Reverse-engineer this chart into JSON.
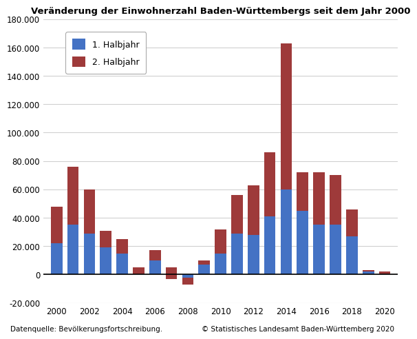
{
  "title": "Veränderung der Einwohnerzahl Baden-Württembergs seit dem Jahr 2000",
  "years": [
    2000,
    2001,
    2002,
    2003,
    2004,
    2005,
    2006,
    2007,
    2008,
    2009,
    2010,
    2011,
    2012,
    2013,
    2014,
    2015,
    2016,
    2017,
    2018,
    2019,
    2020
  ],
  "halbjahr1": [
    22000,
    35000,
    29000,
    19000,
    15000,
    5000,
    10000,
    5000,
    -2000,
    7000,
    15000,
    29000,
    28000,
    41000,
    60000,
    45000,
    35000,
    35000,
    27000,
    3000,
    2000
  ],
  "halbjahr2": [
    26000,
    41000,
    31000,
    12000,
    10000,
    -5000,
    7000,
    -8000,
    -5000,
    3000,
    17000,
    27000,
    35000,
    45000,
    103000,
    27000,
    37000,
    35000,
    19000,
    -1000,
    -2000
  ],
  "color1": "#4472C4",
  "color2": "#9E3A3A",
  "ylim": [
    -20000,
    180000
  ],
  "yticks": [
    -20000,
    0,
    20000,
    40000,
    60000,
    80000,
    100000,
    120000,
    140000,
    160000,
    180000
  ],
  "legend_label1": "1. Halbjahr",
  "legend_label2": "2. Halbjahr",
  "source_left": "Datenquelle: Bevölkerungsfortschreibung.",
  "source_right": "© Statistisches Landesamt Baden-Württemberg 2020",
  "background_color": "#ffffff",
  "grid_color": "#d0d0d0",
  "title_fontsize": 9.5,
  "tick_fontsize": 8.5,
  "legend_fontsize": 9
}
